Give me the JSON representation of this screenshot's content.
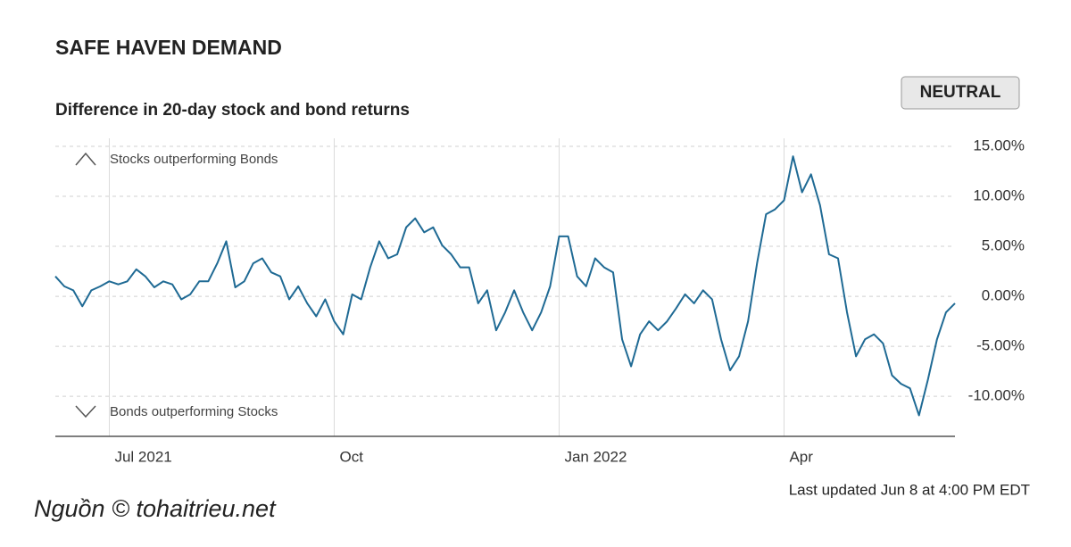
{
  "chart_data": {
    "type": "line",
    "title": "SAFE HAVEN DEMAND",
    "subtitle": "Difference in 20-day stock and bond returns",
    "badge": "NEUTRAL",
    "annotations": [
      "Stocks outperforming Bonds",
      "Bonds outperforming Stocks"
    ],
    "footnote": "Last updated Jun 8 at 4:00 PM EDT",
    "source": "Nguồn © tohaitrieu.net",
    "color": "#1f6a94",
    "grid": true,
    "categories": [
      null,
      null,
      null,
      null,
      null,
      null,
      "Jul 2021",
      null,
      null,
      null,
      null,
      null,
      null,
      null,
      null,
      null,
      null,
      null,
      null,
      null,
      null,
      null,
      null,
      null,
      null,
      null,
      null,
      null,
      null,
      null,
      null,
      "Oct",
      null,
      null,
      null,
      null,
      null,
      null,
      null,
      null,
      null,
      null,
      null,
      null,
      null,
      null,
      null,
      null,
      null,
      null,
      null,
      null,
      null,
      null,
      null,
      null,
      "Jan 2022",
      null,
      null,
      null,
      null,
      null,
      null,
      null,
      null,
      null,
      null,
      null,
      null,
      null,
      null,
      null,
      null,
      null,
      null,
      null,
      null,
      null,
      null,
      null,
      null,
      "Apr",
      null,
      null,
      null,
      null,
      null,
      null,
      null,
      null,
      null,
      null,
      null,
      null,
      null,
      null,
      null,
      null,
      null,
      null,
      null
    ],
    "values": [
      2,
      1,
      0.6,
      -1,
      0.6,
      1,
      1.5,
      1.2,
      1.5,
      2.7,
      2,
      0.9,
      1.5,
      1.2,
      -0.3,
      0.2,
      1.5,
      1.5,
      3.3,
      5.5,
      0.9,
      1.5,
      3.3,
      3.8,
      2.4,
      2,
      -0.3,
      1,
      -0.7,
      -2,
      -0.3,
      -2.5,
      -3.8,
      0.2,
      -0.3,
      2.9,
      5.5,
      3.8,
      4.2,
      6.9,
      7.8,
      6.4,
      6.9,
      5.1,
      4.2,
      2.9,
      2.9,
      -0.7,
      0.6,
      -3.4,
      -1.6,
      0.6,
      -1.6,
      -3.4,
      -1.6,
      1,
      6,
      6,
      2,
      1,
      3.8,
      2.9,
      2.4,
      -4.3,
      -7,
      -3.8,
      -2.5,
      -3.4,
      -2.5,
      -1.2,
      0.2,
      -0.7,
      0.6,
      -0.3,
      -4.3,
      -7.4,
      -6,
      -2.5,
      3.3,
      8.2,
      8.7,
      9.6,
      14,
      10.4,
      12.2,
      9.1,
      4.2,
      3.8,
      -1.6,
      -6,
      -4.3,
      -3.8,
      -4.7,
      -7.9,
      -8.75,
      -9.2,
      -11.9,
      -8.3,
      -4.3,
      -1.6,
      -0.7
    ],
    "ylim": [
      -14,
      15.8
    ],
    "yticks": [
      {
        "value": -10,
        "label": "-10.00%"
      },
      {
        "value": -5,
        "label": "-5.00%"
      },
      {
        "value": 0,
        "label": "0.00%"
      },
      {
        "value": 5,
        "label": "5.00%"
      },
      {
        "value": 10,
        "label": "10.00%"
      },
      {
        "value": 15,
        "label": "15.00%"
      }
    ]
  }
}
